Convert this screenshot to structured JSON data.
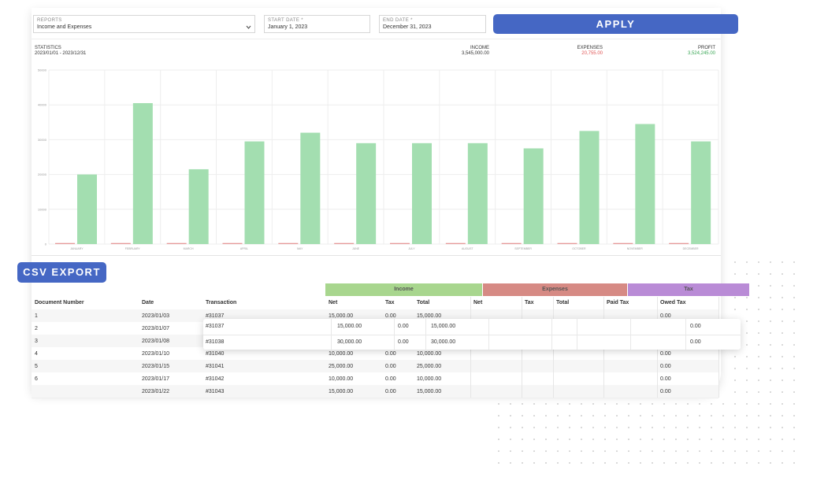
{
  "filters": {
    "reports": {
      "label": "REPORTS",
      "value": "Income and Expenses"
    },
    "start_date": {
      "label": "START DATE *",
      "value": "January 1, 2023"
    },
    "end_date": {
      "label": "END DATE *",
      "value": "December 31, 2023"
    },
    "apply": "APPLY"
  },
  "statistics": {
    "label": "STATISTICS",
    "range": "2023/01/01 - 2023/12/31",
    "income": {
      "label": "INCOME",
      "value": "3,545,000.00"
    },
    "expenses": {
      "label": "EXPENSES",
      "value": "20,755.00"
    },
    "profit": {
      "label": "PROFIT",
      "value": "3,524,245.00"
    }
  },
  "chart_data": {
    "type": "bar",
    "categories": [
      "JANUARY",
      "FEBRUARY",
      "MARCH",
      "APRIL",
      "MAY",
      "JUNE",
      "JULY",
      "AUGUST",
      "SEPTEMBER",
      "OCTOBER",
      "NOVEMBER",
      "DECEMBER"
    ],
    "series": [
      {
        "color": "#e79a9a",
        "values": [
          300,
          300,
          300,
          300,
          300,
          300,
          300,
          300,
          300,
          300,
          300,
          300
        ]
      },
      {
        "color": "#a3deb0",
        "values": [
          20000,
          40500,
          21500,
          29500,
          32000,
          29000,
          29000,
          29000,
          27500,
          32500,
          34500,
          29500
        ]
      }
    ],
    "ylim": [
      0,
      50000
    ],
    "yticks": [
      0,
      10000,
      20000,
      30000,
      40000,
      50000
    ],
    "grid": true
  },
  "csv_export": "CSV EXPORT",
  "table": {
    "groups": [
      "Income",
      "Expenses",
      "Tax"
    ],
    "columns": [
      "Document Number",
      "Date",
      "Transaction",
      "Net",
      "Tax",
      "Total",
      "Net",
      "Tax",
      "Total",
      "Paid Tax",
      "Owed Tax"
    ],
    "rows": [
      [
        "1",
        "2023/01/03",
        "#31037",
        "15,000.00",
        "0.00",
        "15,000.00",
        null,
        null,
        null,
        null,
        "0.00"
      ],
      [
        "2",
        "2023/01/07",
        null,
        null,
        null,
        null,
        null,
        null,
        null,
        null,
        null
      ],
      [
        "3",
        "2023/01/08",
        null,
        null,
        null,
        null,
        null,
        null,
        null,
        null,
        null
      ],
      [
        "4",
        "2023/01/10",
        "#31040",
        "10,000.00",
        "0.00",
        "10,000.00",
        null,
        null,
        null,
        null,
        "0.00"
      ],
      [
        "5",
        "2023/01/15",
        "#31041",
        "25,000.00",
        "0.00",
        "25,000.00",
        null,
        null,
        null,
        null,
        "0.00"
      ],
      [
        "6",
        "2023/01/17",
        "#31042",
        "10,000.00",
        "0.00",
        "10,000.00",
        null,
        null,
        null,
        null,
        "0.00"
      ],
      [
        null,
        "2023/01/22",
        "#31043",
        "15,000.00",
        "0.00",
        "15,000.00",
        null,
        null,
        null,
        null,
        "0.00"
      ]
    ]
  },
  "popup": {
    "rows": [
      [
        "#31037",
        "15,000.00",
        "0.00",
        "15,000.00",
        "0.00"
      ],
      [
        "#31038",
        "30,000.00",
        "0.00",
        "30,000.00",
        "0.00"
      ]
    ]
  }
}
